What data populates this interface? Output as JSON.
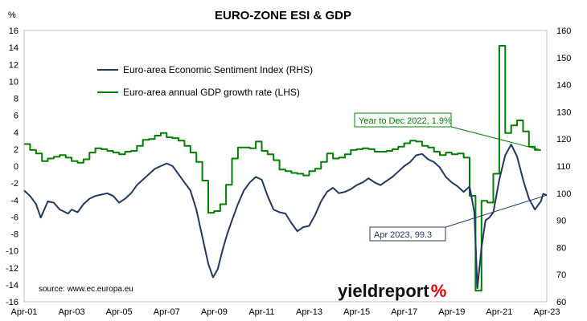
{
  "chart_data": {
    "type": "line",
    "title": "EURO-ZONE ESI & GDP",
    "y_left_unit": "%",
    "y_left_ticks": [
      16,
      14,
      12,
      10,
      8,
      6,
      4,
      2,
      0,
      -2,
      -4,
      -6,
      -8,
      -10,
      -12,
      -14,
      -16
    ],
    "y_right_ticks": [
      160,
      150,
      140,
      130,
      120,
      110,
      100,
      90,
      80,
      70,
      60
    ],
    "ylim_left": [
      -16,
      16
    ],
    "ylim_right": [
      60,
      160
    ],
    "x_ticks": [
      "Apr-01",
      "Apr-03",
      "Apr-05",
      "Apr-07",
      "Apr-09",
      "Apr-11",
      "Apr-13",
      "Apr-15",
      "Apr-17",
      "Apr-19",
      "Apr-21",
      "Apr-23"
    ],
    "xlim": [
      2001.25,
      2023.25
    ],
    "grid": false,
    "legend_position": "top-left",
    "series": [
      {
        "name": "Euro-area Economic Sentiment Index (RHS)",
        "axis": "right",
        "color": "#1f3864",
        "points": [
          [
            2001.25,
            101
          ],
          [
            2001.5,
            99
          ],
          [
            2001.75,
            96
          ],
          [
            2001.95,
            91
          ],
          [
            2002.25,
            97
          ],
          [
            2002.5,
            96.5
          ],
          [
            2002.75,
            94
          ],
          [
            2003.1,
            92.5
          ],
          [
            2003.25,
            94
          ],
          [
            2003.5,
            93
          ],
          [
            2003.75,
            96
          ],
          [
            2004.0,
            98
          ],
          [
            2004.25,
            99
          ],
          [
            2004.5,
            99.5
          ],
          [
            2004.75,
            100
          ],
          [
            2005.0,
            99
          ],
          [
            2005.25,
            96.5
          ],
          [
            2005.5,
            98
          ],
          [
            2005.75,
            100
          ],
          [
            2006.0,
            103
          ],
          [
            2006.25,
            105
          ],
          [
            2006.5,
            107
          ],
          [
            2006.75,
            109
          ],
          [
            2007.0,
            110
          ],
          [
            2007.25,
            111
          ],
          [
            2007.5,
            110
          ],
          [
            2007.75,
            107
          ],
          [
            2008.0,
            104
          ],
          [
            2008.25,
            101
          ],
          [
            2008.5,
            94
          ],
          [
            2008.75,
            84
          ],
          [
            2009.0,
            74
          ],
          [
            2009.2,
            69
          ],
          [
            2009.4,
            72
          ],
          [
            2009.6,
            79
          ],
          [
            2009.8,
            85
          ],
          [
            2010.0,
            90
          ],
          [
            2010.25,
            96
          ],
          [
            2010.5,
            101
          ],
          [
            2010.75,
            104
          ],
          [
            2011.0,
            106
          ],
          [
            2011.25,
            105
          ],
          [
            2011.5,
            99
          ],
          [
            2011.75,
            94
          ],
          [
            2012.0,
            93
          ],
          [
            2012.25,
            92.5
          ],
          [
            2012.5,
            89
          ],
          [
            2012.75,
            86
          ],
          [
            2013.0,
            87.5
          ],
          [
            2013.25,
            88
          ],
          [
            2013.5,
            92
          ],
          [
            2013.75,
            97
          ],
          [
            2014.0,
            100.5
          ],
          [
            2014.25,
            102
          ],
          [
            2014.5,
            100
          ],
          [
            2014.75,
            100.5
          ],
          [
            2015.0,
            101.5
          ],
          [
            2015.25,
            103
          ],
          [
            2015.5,
            104
          ],
          [
            2015.75,
            105.5
          ],
          [
            2016.0,
            104
          ],
          [
            2016.25,
            103
          ],
          [
            2016.5,
            104.5
          ],
          [
            2016.75,
            106
          ],
          [
            2017.0,
            108
          ],
          [
            2017.25,
            110
          ],
          [
            2017.5,
            111.5
          ],
          [
            2017.75,
            114
          ],
          [
            2018.0,
            114.5
          ],
          [
            2018.25,
            112.5
          ],
          [
            2018.5,
            111.5
          ],
          [
            2018.75,
            109.5
          ],
          [
            2019.0,
            106
          ],
          [
            2019.25,
            104
          ],
          [
            2019.5,
            102.5
          ],
          [
            2019.75,
            100.5
          ],
          [
            2020.0,
            102.5
          ],
          [
            2020.2,
            93
          ],
          [
            2020.33,
            65
          ],
          [
            2020.5,
            80
          ],
          [
            2020.67,
            90
          ],
          [
            2020.83,
            91
          ],
          [
            2021.0,
            93
          ],
          [
            2021.25,
            105
          ],
          [
            2021.5,
            114
          ],
          [
            2021.75,
            118
          ],
          [
            2022.0,
            113.5
          ],
          [
            2022.25,
            105
          ],
          [
            2022.5,
            98
          ],
          [
            2022.75,
            94
          ],
          [
            2023.0,
            97
          ],
          [
            2023.1,
            99.8
          ],
          [
            2023.25,
            99.3
          ]
        ]
      },
      {
        "name": "Euro-area annual GDP growth rate (LHS)",
        "axis": "left",
        "color": "#008000",
        "points": [
          [
            2001.25,
            2.6
          ],
          [
            2001.5,
            1.9
          ],
          [
            2001.75,
            1.5
          ],
          [
            2002.0,
            0.6
          ],
          [
            2002.25,
            0.9
          ],
          [
            2002.5,
            1.1
          ],
          [
            2002.75,
            1.3
          ],
          [
            2003.0,
            1.0
          ],
          [
            2003.25,
            0.6
          ],
          [
            2003.5,
            0.4
          ],
          [
            2003.75,
            0.8
          ],
          [
            2004.0,
            1.6
          ],
          [
            2004.25,
            2.1
          ],
          [
            2004.5,
            2.0
          ],
          [
            2004.75,
            1.8
          ],
          [
            2005.0,
            1.6
          ],
          [
            2005.25,
            1.4
          ],
          [
            2005.5,
            1.7
          ],
          [
            2005.75,
            1.8
          ],
          [
            2006.0,
            2.4
          ],
          [
            2006.25,
            3.1
          ],
          [
            2006.5,
            3.2
          ],
          [
            2006.75,
            3.6
          ],
          [
            2007.0,
            3.9
          ],
          [
            2007.25,
            3.4
          ],
          [
            2007.5,
            3.3
          ],
          [
            2007.75,
            3.0
          ],
          [
            2008.0,
            2.4
          ],
          [
            2008.25,
            1.6
          ],
          [
            2008.5,
            0.5
          ],
          [
            2008.75,
            -1.7
          ],
          [
            2009.0,
            -5.5
          ],
          [
            2009.25,
            -5.3
          ],
          [
            2009.5,
            -4.5
          ],
          [
            2009.75,
            -2.2
          ],
          [
            2010.0,
            0.9
          ],
          [
            2010.25,
            2.2
          ],
          [
            2010.5,
            2.2
          ],
          [
            2010.75,
            2.1
          ],
          [
            2011.0,
            2.9
          ],
          [
            2011.25,
            1.8
          ],
          [
            2011.5,
            1.4
          ],
          [
            2011.75,
            0.7
          ],
          [
            2012.0,
            -0.4
          ],
          [
            2012.25,
            -0.6
          ],
          [
            2012.5,
            -0.8
          ],
          [
            2012.75,
            -0.9
          ],
          [
            2013.0,
            -1.1
          ],
          [
            2013.25,
            -0.6
          ],
          [
            2013.5,
            -0.3
          ],
          [
            2013.75,
            0.5
          ],
          [
            2014.0,
            1.5
          ],
          [
            2014.25,
            0.9
          ],
          [
            2014.5,
            1.0
          ],
          [
            2014.75,
            1.4
          ],
          [
            2015.0,
            1.9
          ],
          [
            2015.25,
            2.0
          ],
          [
            2015.5,
            2.1
          ],
          [
            2015.75,
            2.0
          ],
          [
            2016.0,
            1.7
          ],
          [
            2016.25,
            1.7
          ],
          [
            2016.5,
            1.8
          ],
          [
            2016.75,
            2.0
          ],
          [
            2017.0,
            2.3
          ],
          [
            2017.25,
            2.7
          ],
          [
            2017.5,
            3.0
          ],
          [
            2017.75,
            2.9
          ],
          [
            2018.0,
            2.4
          ],
          [
            2018.25,
            2.2
          ],
          [
            2018.5,
            1.7
          ],
          [
            2018.75,
            1.3
          ],
          [
            2019.0,
            1.6
          ],
          [
            2019.25,
            1.4
          ],
          [
            2019.5,
            1.5
          ],
          [
            2019.75,
            1.0
          ],
          [
            2020.0,
            -3.5
          ],
          [
            2020.25,
            -14.7
          ],
          [
            2020.5,
            -4.1
          ],
          [
            2020.75,
            -4.3
          ],
          [
            2021.0,
            -0.9
          ],
          [
            2021.25,
            14.2
          ],
          [
            2021.5,
            3.9
          ],
          [
            2021.75,
            4.8
          ],
          [
            2022.0,
            5.4
          ],
          [
            2022.25,
            4.1
          ],
          [
            2022.5,
            2.3
          ],
          [
            2022.75,
            1.9
          ]
        ]
      }
    ],
    "annotations": [
      {
        "text": "Year to Dec 2022, 1.9%",
        "series": "gdp",
        "x": 2022.75,
        "y": 1.9
      },
      {
        "text": "Apr 2023, 99.3",
        "series": "esi",
        "x": 2023.25,
        "y": 99.3
      }
    ],
    "source": "source: www.ec.europa.eu",
    "brand": {
      "name": "yieldreport",
      "symbol": "%",
      "symbol_color": "#e00000"
    }
  }
}
